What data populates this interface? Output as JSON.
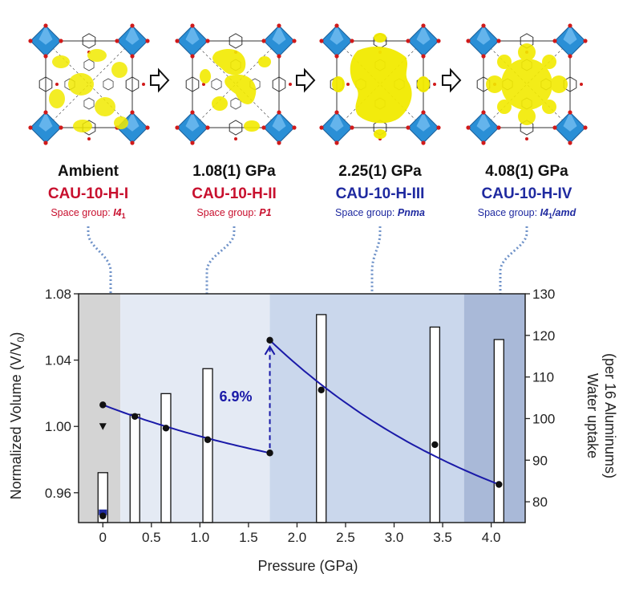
{
  "colors": {
    "red": "#c8102e",
    "blue": "#1f2aa0",
    "octahedron": "#2a8fd6",
    "pore": "#f2ea00",
    "line": "#1a1aa8",
    "region_0": "#d4d4d4",
    "region_1": "#e4eaf4",
    "region_2": "#cad7ec",
    "region_3": "#a9b9d8"
  },
  "panels": [
    {
      "title": "Ambient",
      "phase": "CAU-10-H-I",
      "sg_prefix": "Space group: ",
      "sg_symbol": "I4",
      "sg_sub": "1",
      "sg_tail": "",
      "color": "red"
    },
    {
      "title": "1.08(1) GPa",
      "phase": "CAU-10-H-II",
      "sg_prefix": "Space group: ",
      "sg_symbol": "P1",
      "sg_sub": "",
      "sg_tail": "",
      "color": "red"
    },
    {
      "title": "2.25(1) GPa",
      "phase": "CAU-10-H-III",
      "sg_prefix": "Space group: ",
      "sg_symbol": "Pnma",
      "sg_sub": "",
      "sg_tail": "",
      "color": "blue"
    },
    {
      "title": "4.08(1) GPa",
      "phase": "CAU-10-H-IV",
      "sg_prefix": "Space group: ",
      "sg_symbol": "I4",
      "sg_sub": "1",
      "sg_tail": "/amd",
      "color": "blue"
    }
  ],
  "arrow_icon": "hollow-right-arrow-icon",
  "chart_data": {
    "type": "bar+scatter",
    "xlabel": "Pressure (GPa)",
    "ylabel_left": "Normalized Volume (V/V",
    "ylabel_left_sub": "0",
    "ylabel_left_close": ")",
    "ylabel_right_line1": "Water uptake",
    "ylabel_right_line2": "(per 16 Aluminums)",
    "xlim": [
      -0.25,
      4.35
    ],
    "x_ticks": [
      0,
      0.5,
      1.0,
      1.5,
      2.0,
      2.5,
      3.0,
      3.5,
      4.0
    ],
    "x_tick_labels": [
      "0",
      "0.5",
      "1.0",
      "1.5",
      "2.0",
      "2.5",
      "3.0",
      "3.5",
      "4.0"
    ],
    "ylim_left": [
      0.942,
      1.08
    ],
    "y_left_ticks": [
      0.96,
      1.0,
      1.04,
      1.08
    ],
    "y_left_tick_labels": [
      "0.96",
      "1.00",
      "1.04",
      "1.08"
    ],
    "ylim_right": [
      75,
      130
    ],
    "y_right_ticks": [
      80,
      90,
      100,
      110,
      120,
      130
    ],
    "y_right_tick_labels": [
      "80",
      "90",
      "100",
      "110",
      "120",
      "130"
    ],
    "regions": [
      {
        "from": -0.25,
        "to": 0.18,
        "color": "region_0"
      },
      {
        "from": 0.18,
        "to": 1.72,
        "color": "region_1"
      },
      {
        "from": 1.72,
        "to": 3.72,
        "color": "region_2"
      },
      {
        "from": 3.72,
        "to": 4.35,
        "color": "region_3"
      }
    ],
    "water_uptake_bars": [
      {
        "x": 0.0,
        "value": 87
      },
      {
        "x": 0.33,
        "value": 101
      },
      {
        "x": 0.65,
        "value": 106
      },
      {
        "x": 1.08,
        "value": 112
      },
      {
        "x": 2.25,
        "value": 125
      },
      {
        "x": 3.42,
        "value": 122
      },
      {
        "x": 4.08,
        "value": 119
      }
    ],
    "blue_marker": {
      "x": 0.0,
      "value": 0.946
    },
    "volume_points": [
      {
        "x": 0.0,
        "y": 1.013
      },
      {
        "x": 0.0,
        "y": 1.0
      },
      {
        "x": 0.0,
        "y": 0.946
      },
      {
        "x": 0.33,
        "y": 1.006
      },
      {
        "x": 0.65,
        "y": 0.999
      },
      {
        "x": 1.08,
        "y": 0.992
      },
      {
        "x": 1.72,
        "y": 0.984
      },
      {
        "x": 1.72,
        "y": 1.052
      },
      {
        "x": 2.25,
        "y": 1.022
      },
      {
        "x": 3.42,
        "y": 0.989
      },
      {
        "x": 4.08,
        "y": 0.965
      }
    ],
    "fit_low": {
      "x": [
        0.0,
        1.72
      ],
      "y": [
        1.013,
        0.984
      ]
    },
    "fit_high": {
      "x": [
        1.72,
        4.08
      ],
      "y": [
        1.052,
        0.965
      ]
    },
    "jump_annotation": {
      "text": "6.9%",
      "x": 1.72,
      "from": 0.984,
      "to": 1.052
    }
  }
}
